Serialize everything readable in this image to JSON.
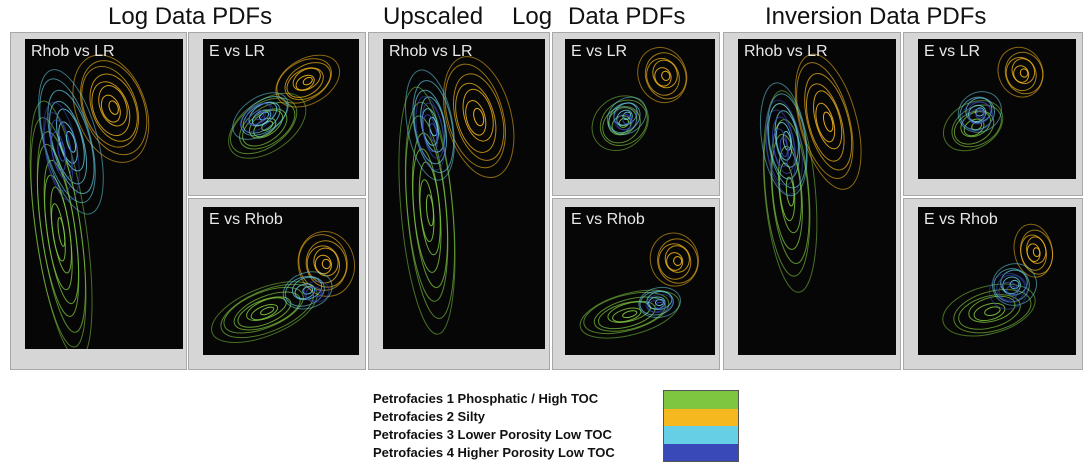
{
  "titles": {
    "log": "Log Data PDFs",
    "upscaled_a": "Upscaled",
    "upscaled_b": "Log",
    "upscaled_c": "Data PDFs",
    "inversion": "Inversion Data PDFs"
  },
  "panels": {
    "log_rhob_lr": "Rhob vs LR",
    "log_e_lr": "E vs LR",
    "log_e_rhob": "E vs Rhob",
    "ups_rhob_lr": "Rhob vs LR",
    "ups_e_lr": "E vs LR",
    "ups_e_rhob": "E vs Rhob",
    "inv_rhob_lr": "Rhob vs LR",
    "inv_e_lr": "E vs LR",
    "inv_e_rhob": "E vs Rhob"
  },
  "colors": {
    "p1": "#7ec63f",
    "p2": "#f5b81e",
    "p3": "#66cfe6",
    "p4": "#3a49b8",
    "plot_bg": "#060606",
    "panel_bg": "#d6d6d6"
  },
  "legend": [
    {
      "label": "Petrofacies 1 Phosphatic / High TOC",
      "color": "#7ec63f"
    },
    {
      "label": "Petrofacies 2 Silty",
      "color": "#f5b81e"
    },
    {
      "label": "Petrofacies 3 Lower Porosity Low TOC",
      "color": "#66cfe6"
    },
    {
      "label": "Petrofacies 4 Higher Porosity Low TOC",
      "color": "#3a49b8"
    }
  ],
  "chart_data": {
    "type": "contour",
    "series": [
      {
        "name": "Petrofacies 1 Phosphatic / High TOC"
      },
      {
        "name": "Petrofacies 2 Silty"
      },
      {
        "name": "Petrofacies 3 Lower Porosity Low TOC"
      },
      {
        "name": "Petrofacies 4 Higher Porosity Low TOC"
      }
    ],
    "groups": [
      "Log Data PDFs",
      "Upscaled Log Data PDFs",
      "Inversion Data PDFs"
    ],
    "subplots": [
      "Rhob vs LR",
      "E vs LR",
      "E vs Rhob"
    ]
  }
}
